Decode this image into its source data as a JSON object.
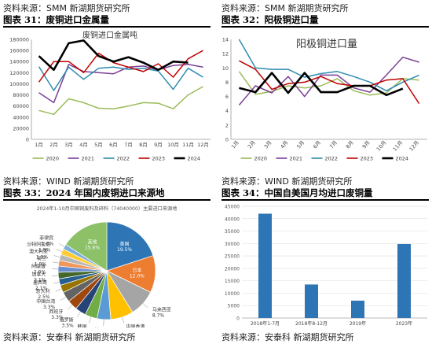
{
  "panels": [
    {
      "source_top": "资料来源：SMM 新湖期货研究所",
      "figure_title": "图表 31：废铜进口金属量",
      "source_bottom": ""
    },
    {
      "source_top": "资料来源：SMM 新湖期货研究所",
      "figure_title": "图表 32：阳极铜进口量",
      "source_bottom": ""
    },
    {
      "source_top": "资料来源：WIND 新湖期货研究所",
      "figure_title": "图表 33：2024 年国内废铜进口来源地",
      "source_bottom": "资料来源：安泰科 新湖期货研究所"
    },
    {
      "source_top": "资料来源：WIND 新湖期货研究所",
      "figure_title": "图表 34：中国自美国月均进口废铜量",
      "source_bottom": "资料来源：安泰科 新湖期货研究所"
    }
  ],
  "chart_data": [
    {
      "type": "line",
      "title": "废铜进口金属吨",
      "categories": [
        "1月",
        "2月",
        "3月",
        "4月",
        "5月",
        "6月",
        "7月",
        "8月",
        "9月",
        "10月",
        "11月",
        "12月"
      ],
      "ylim": [
        0,
        180000
      ],
      "yticks": [
        0,
        20000,
        40000,
        60000,
        80000,
        100000,
        120000,
        140000,
        160000,
        180000
      ],
      "series": [
        {
          "name": "2020",
          "color": "#9bbb59",
          "values": [
            52000,
            45000,
            73000,
            66000,
            56000,
            55000,
            60000,
            66000,
            65000,
            55000,
            80000,
            95000
          ]
        },
        {
          "name": "2021",
          "color": "#7b3f95",
          "values": [
            84000,
            66000,
            135000,
            122000,
            120000,
            118000,
            130000,
            132000,
            125000,
            133000,
            135000,
            130000
          ]
        },
        {
          "name": "2022",
          "color": "#2e8bb0",
          "values": [
            131000,
            88000,
            130000,
            108000,
            128000,
            130000,
            126000,
            128000,
            123000,
            90000,
            128000,
            112000
          ]
        },
        {
          "name": "2023",
          "color": "#c00000",
          "values": [
            103000,
            140000,
            140000,
            120000,
            155000,
            138000,
            130000,
            122000,
            136000,
            112000,
            145000,
            160000
          ]
        },
        {
          "name": "2024",
          "color": "#000000",
          "values": [
            150000,
            125000,
            173000,
            178000,
            150000,
            140000,
            148000,
            138000,
            125000,
            140000,
            138000,
            null
          ]
        }
      ]
    },
    {
      "type": "line",
      "title": "阳极铜进口量",
      "categories": [
        "1月",
        "2月",
        "3月",
        "4月",
        "5月",
        "6月",
        "7月",
        "8月",
        "9月",
        "10月",
        "11月",
        "12月"
      ],
      "ylim": [
        0,
        14
      ],
      "yticks": [
        0,
        2,
        4,
        6,
        8,
        10,
        12,
        14
      ],
      "series": [
        {
          "name": "2020",
          "color": "#9bbb59",
          "values": [
            9.5,
            6.3,
            6.7,
            7.5,
            7.2,
            7.5,
            8.5,
            6.8,
            6.2,
            6.5,
            8.5,
            8.3
          ]
        },
        {
          "name": "2021",
          "color": "#7b3f95",
          "values": [
            4.8,
            7.5,
            6.5,
            8.8,
            6.0,
            9.0,
            9.0,
            7.2,
            6.6,
            9.0,
            11.5,
            10.8
          ]
        },
        {
          "name": "2022",
          "color": "#2e8bb0",
          "values": [
            14.0,
            10.0,
            9.8,
            9.8,
            8.7,
            9.2,
            9.5,
            8.8,
            8.0,
            6.8,
            8.0,
            9.0
          ]
        },
        {
          "name": "2023",
          "color": "#c00000",
          "values": [
            11.0,
            9.8,
            7.0,
            7.8,
            8.0,
            8.8,
            7.8,
            7.5,
            7.5,
            8.3,
            8.5,
            5.0
          ]
        },
        {
          "name": "2024",
          "color": "#000000",
          "values": [
            7.2,
            6.6,
            9.3,
            6.5,
            9.3,
            6.6,
            6.6,
            7.5,
            7.5,
            6.2,
            7.1,
            null
          ]
        }
      ]
    },
    {
      "type": "pie",
      "title": "2024年1-10月中国铜废料及碎料（74040000）主要进口来源地",
      "slices": [
        {
          "label": "美国",
          "value": 19.5,
          "color": "#2e75b6"
        },
        {
          "label": "日本",
          "value": 12.0,
          "color": "#ed7d31"
        },
        {
          "label": "马来西亚",
          "value": 8.7,
          "color": "#a5a5a5"
        },
        {
          "label": "中国香港",
          "value": 7.4,
          "color": "#ffc000"
        },
        {
          "label": "英国",
          "value": 4.4,
          "color": "#5b9bd5"
        },
        {
          "label": "韩国",
          "value": 4.0,
          "color": "#70ad47"
        },
        {
          "label": "俄罗斯",
          "value": 3.5,
          "color": "#264478"
        },
        {
          "label": "西班牙",
          "value": 3.3,
          "color": "#9e480e"
        },
        {
          "label": "中国台湾",
          "value": 3.3,
          "color": "#636363"
        },
        {
          "label": "意大利",
          "value": 2.5,
          "color": "#997300"
        },
        {
          "label": "墨西哥",
          "value": 2.1,
          "color": "#255e91"
        },
        {
          "label": "加拿大",
          "value": 2.1,
          "color": "#43682b"
        },
        {
          "label": "阿联酋",
          "value": 2.0,
          "color": "#698ed0"
        },
        {
          "label": "荷兰",
          "value": 1.9,
          "color": "#f1975a"
        },
        {
          "label": "澳大利亚",
          "value": 1.9,
          "color": "#b7b7b7"
        },
        {
          "label": "沙特阿拉伯",
          "value": 1.9,
          "color": "#ffcd33"
        },
        {
          "label": "菲律宾",
          "value": 1.6,
          "color": "#7cafdd"
        },
        {
          "label": "其他",
          "value": 15.6,
          "color": "#8cc168"
        }
      ],
      "display_labels": {
        "美国": "19.5%",
        "日本": "12.0%",
        "马来西亚": "8.7%",
        "中国香港": "7.4%",
        "英国": "4.4%",
        "韩国": "4.0%",
        "俄罗斯": "3.5%",
        "西班牙": "3.3%",
        "中国台湾": "3.3%",
        "意大利": "2.5%",
        "墨西哥": "2.1%",
        "加拿大": "2.1%",
        "阿联酋": "2.0%",
        "荷兰": "1.9%",
        "澳大利亚": "1.9%",
        "沙特阿拉伯": "1.9%",
        "菲律宾": "1.6%",
        "其他": "15.6%"
      }
    },
    {
      "type": "bar",
      "title": "",
      "categories": [
        "2018年1-7月",
        "2018年8-12月",
        "2019年",
        "2023年"
      ],
      "values": [
        42000,
        13500,
        7000,
        29800
      ],
      "ylim": [
        0,
        45000
      ],
      "yticks": [
        0,
        5000,
        10000,
        15000,
        20000,
        25000,
        30000,
        35000,
        40000,
        45000
      ],
      "color": "#2e75b6"
    }
  ],
  "legend": [
    "2020",
    "2021",
    "2022",
    "2023",
    "2024"
  ]
}
